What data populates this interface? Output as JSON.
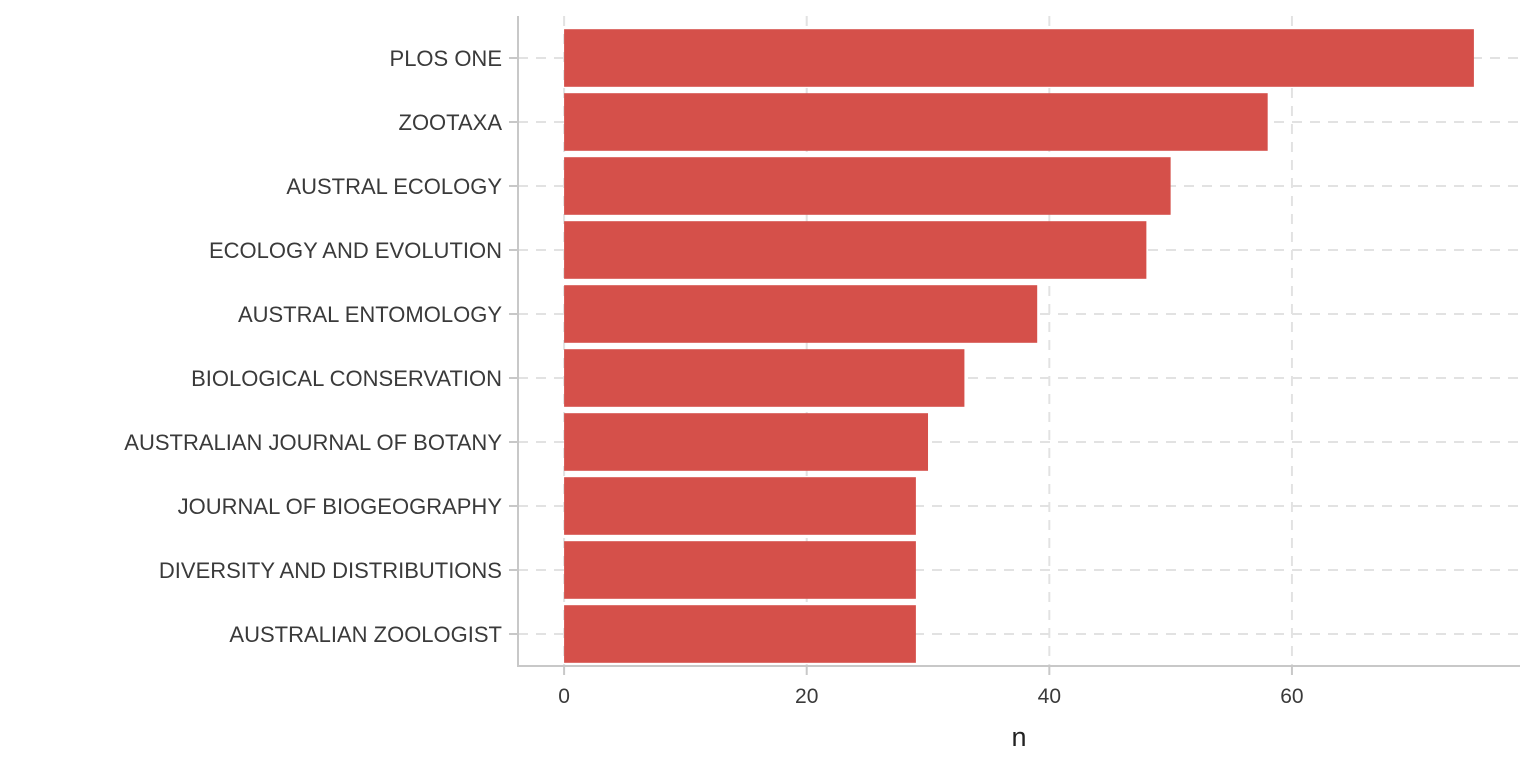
{
  "chart_data": {
    "type": "bar",
    "orientation": "horizontal",
    "categories": [
      "PLOS ONE",
      "ZOOTAXA",
      "AUSTRAL ECOLOGY",
      "ECOLOGY AND EVOLUTION",
      "AUSTRAL ENTOMOLOGY",
      "BIOLOGICAL CONSERVATION",
      "AUSTRALIAN JOURNAL OF BOTANY",
      "JOURNAL OF BIOGEOGRAPHY",
      "DIVERSITY AND DISTRIBUTIONS",
      "AUSTRALIAN ZOOLOGIST"
    ],
    "values": [
      75,
      58,
      50,
      48,
      39,
      33,
      30,
      29,
      29,
      29
    ],
    "xlabel": "n",
    "ylabel": "",
    "xlim": [
      -3.8,
      78.8
    ],
    "xticks": [
      0,
      20,
      40,
      60
    ],
    "xtick_labels": [
      "0",
      "20",
      "40",
      "60"
    ],
    "grid": true,
    "bar_color": "#d5504a",
    "grid_color": "#e2e2e2",
    "axis_color": "#c8c8c8"
  }
}
